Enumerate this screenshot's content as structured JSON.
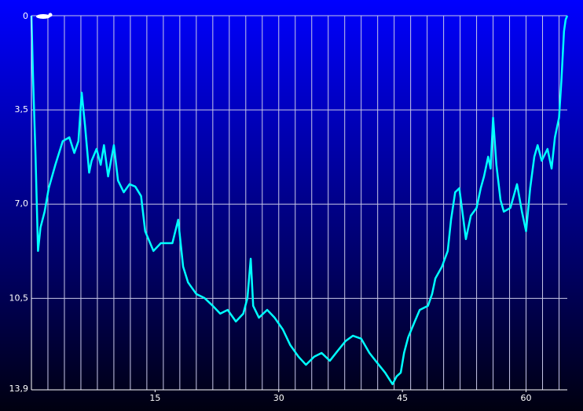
{
  "chart_data": {
    "type": "line",
    "x": [
      0,
      0.2,
      0.5,
      0.8,
      1.1,
      1.6,
      2.1,
      2.9,
      3.8,
      4.6,
      5.2,
      5.7,
      6.1,
      6.5,
      7.0,
      7.3,
      7.9,
      8.4,
      8.8,
      9.3,
      10.0,
      10.5,
      11.2,
      11.9,
      12.6,
      13.3,
      13.8,
      14.8,
      15.7,
      17.1,
      17.8,
      18.4,
      19.0,
      20.0,
      21.0,
      22.0,
      22.9,
      23.8,
      24.8,
      25.7,
      26.2,
      26.6,
      26.9,
      27.6,
      28.6,
      29.5,
      30.5,
      31.4,
      32.4,
      33.3,
      34.3,
      35.2,
      36.2,
      37.1,
      38.1,
      39.0,
      40.0,
      41.0,
      41.9,
      42.9,
      43.8,
      44.3,
      44.8,
      45.2,
      45.7,
      46.5,
      47.1,
      48.1,
      48.6,
      49.0,
      49.8,
      50.5,
      50.9,
      51.4,
      51.9,
      52.4,
      52.7,
      53.3,
      54.0,
      54.5,
      54.9,
      55.4,
      55.7,
      56.0,
      56.4,
      56.9,
      57.3,
      58.1,
      58.9,
      59.5,
      60.0,
      60.5,
      61.0,
      61.4,
      61.9,
      62.6,
      63.1,
      63.5,
      64.0,
      64.3,
      64.6,
      64.8,
      65.0
    ],
    "series": [
      {
        "color": "#00ffff",
        "values": [
          0,
          2.33,
          5.24,
          8.74,
          7.87,
          7.28,
          6.41,
          5.54,
          4.66,
          4.52,
          5.1,
          4.66,
          2.86,
          4.08,
          5.83,
          5.39,
          4.95,
          5.54,
          4.81,
          5.97,
          4.81,
          6.12,
          6.56,
          6.26,
          6.35,
          6.7,
          8.01,
          8.74,
          8.45,
          8.45,
          7.58,
          9.32,
          9.91,
          10.34,
          10.49,
          10.78,
          11.07,
          10.93,
          11.36,
          11.07,
          10.49,
          9.03,
          10.78,
          11.22,
          10.93,
          11.22,
          11.66,
          12.24,
          12.67,
          12.97,
          12.67,
          12.53,
          12.82,
          12.47,
          12.09,
          11.89,
          12.0,
          12.53,
          12.88,
          13.26,
          13.69,
          13.4,
          13.26,
          12.53,
          11.95,
          11.36,
          10.93,
          10.78,
          10.34,
          9.76,
          9.32,
          8.74,
          7.58,
          6.56,
          6.41,
          7.58,
          8.3,
          7.43,
          7.14,
          6.41,
          5.97,
          5.24,
          5.68,
          3.79,
          5.54,
          6.85,
          7.28,
          7.14,
          6.26,
          7.28,
          8.01,
          6.41,
          5.24,
          4.81,
          5.39,
          4.95,
          5.68,
          4.52,
          3.79,
          2.33,
          0.58,
          0.15,
          0
        ]
      }
    ],
    "xlim": [
      0,
      65
    ],
    "xticks": [
      15,
      30,
      45,
      60
    ],
    "xgrid": [
      2,
      4,
      6,
      8,
      10,
      12,
      14,
      16,
      18,
      20,
      22,
      24,
      26,
      28,
      30,
      32,
      34,
      36,
      38,
      40,
      42,
      44,
      46,
      48,
      50,
      52,
      54,
      56,
      58,
      60,
      62,
      64
    ],
    "ylim": [
      0,
      13.9
    ],
    "yticks": [
      0,
      {
        "value": 3.5,
        "label": "3,5"
      },
      {
        "value": 7.0,
        "label": "7,0"
      },
      {
        "value": 10.5,
        "label": "10,5"
      },
      {
        "value": 13.9,
        "label": "13,9"
      }
    ],
    "y_inverted": true,
    "grid": true
  }
}
